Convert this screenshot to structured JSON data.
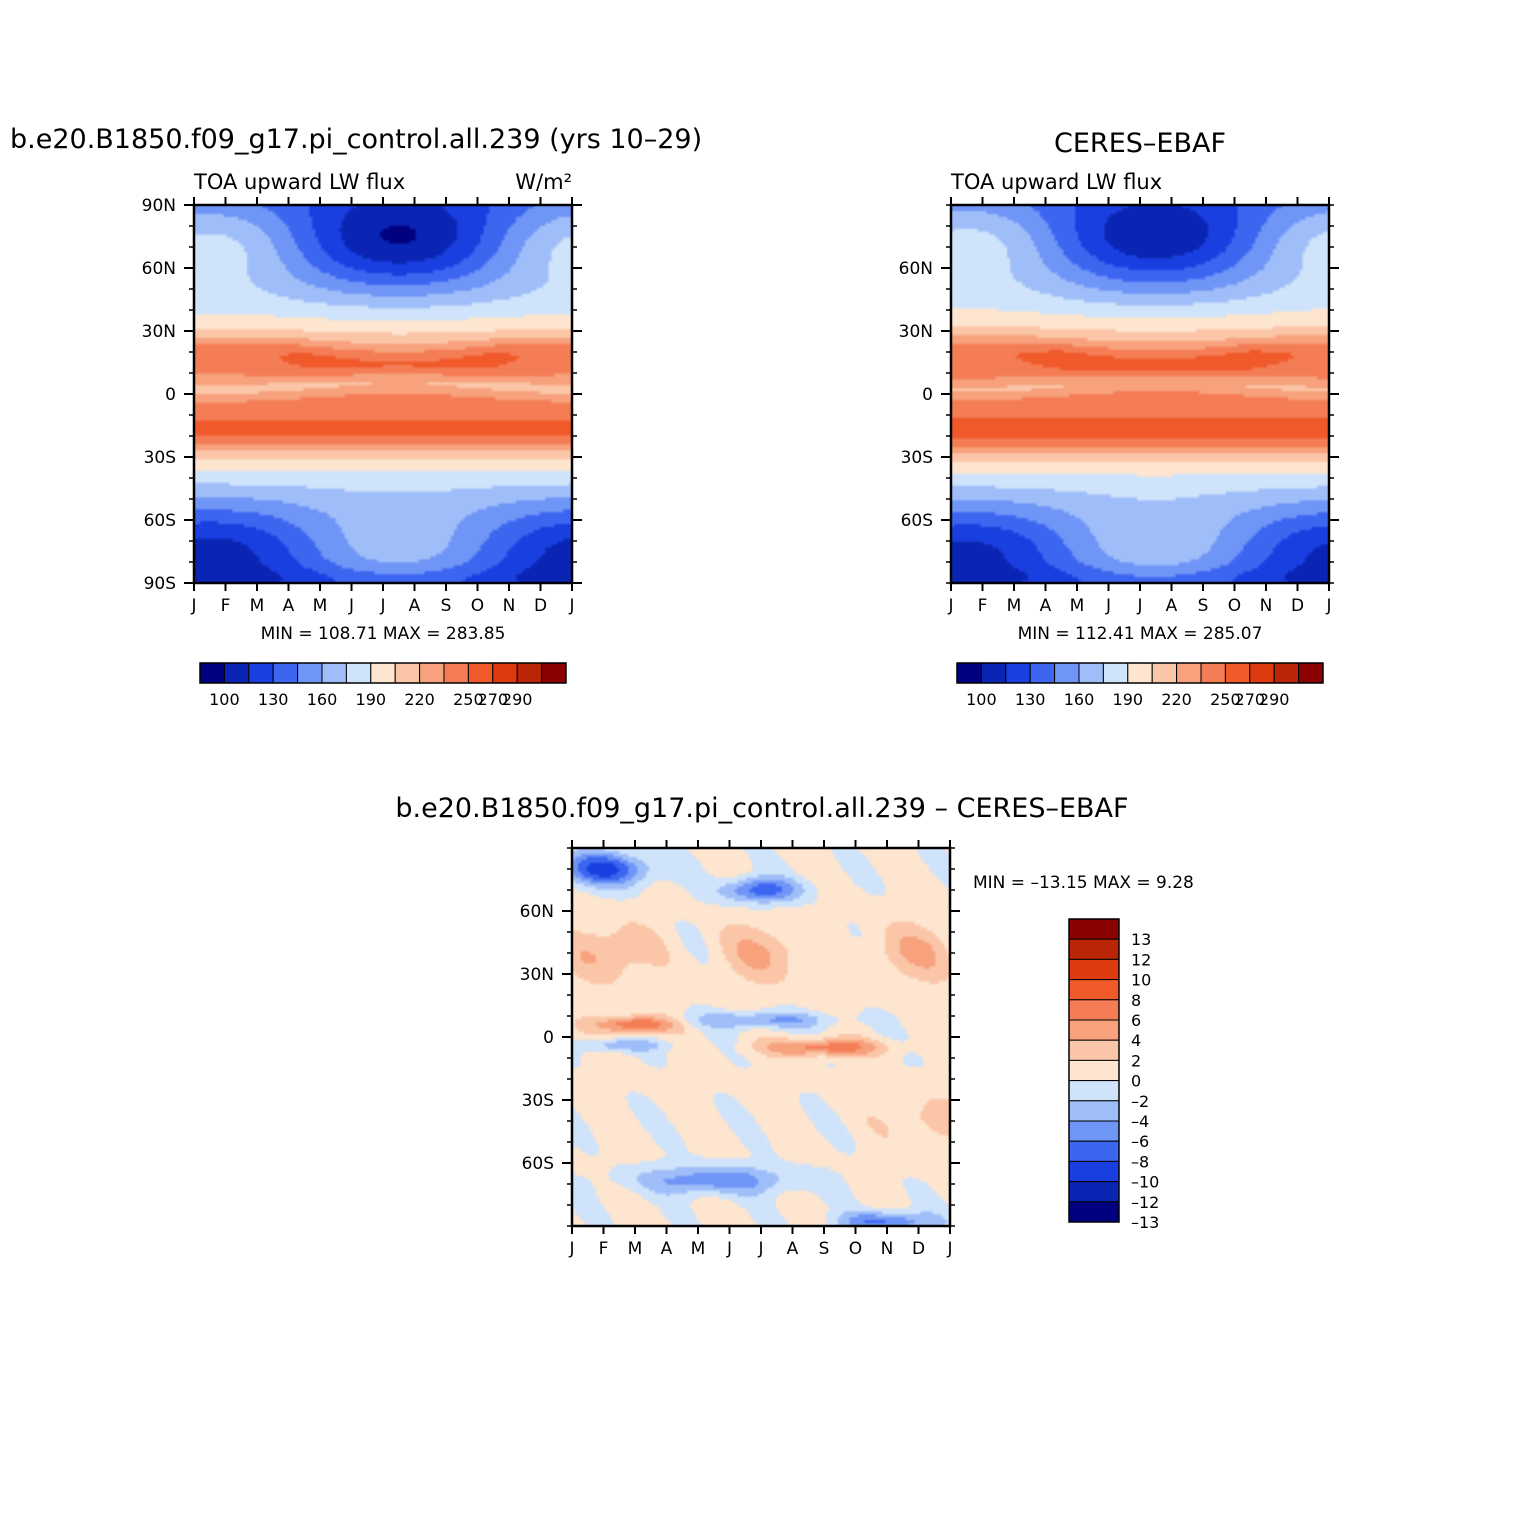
{
  "figure": {
    "model_title": "b.e20.B1850.f09_g17.pi_control.all.239 (yrs 10–29)",
    "obs_title": "CERES–EBAF",
    "diff_title": "b.e20.B1850.f09_g17.pi_control.all.239 – CERES–EBAF",
    "variable": "TOA upward LW flux",
    "units": "W/m²"
  },
  "stats": {
    "model": "MIN =  108.71  MAX =  283.85",
    "obs": "MIN =  112.41  MAX =  285.07",
    "diff": "MIN = –13.15  MAX =    9.28"
  },
  "x_ticks": [
    "J",
    "F",
    "M",
    "A",
    "M",
    "J",
    "J",
    "A",
    "S",
    "O",
    "N",
    "D",
    "J"
  ],
  "y_ticks_model": [
    "90N",
    "60N",
    "30N",
    "0",
    "30S",
    "60S",
    "90S"
  ],
  "y_ticks_obs": [
    "60N",
    "30N",
    "0",
    "30S",
    "60S"
  ],
  "y_ticks_diff": [
    "60N",
    "30N",
    "0",
    "30S",
    "60S"
  ],
  "colors": {
    "abs_bar": [
      "#000080",
      "#0a25b4",
      "#1a3fe0",
      "#3d66f0",
      "#6f95f7",
      "#9fbef9",
      "#cfe3fb",
      "#fde5cf",
      "#fbc6a8",
      "#f7a17d",
      "#f47d55",
      "#f05a2b",
      "#de3a10",
      "#b92505",
      "#8b0000"
    ],
    "diff_bar": [
      "#000080",
      "#0a25b4",
      "#1a3fe0",
      "#3d66f0",
      "#6f95f7",
      "#9fbef9",
      "#cfe3fb",
      "#fde5cf",
      "#fbc6a8",
      "#f7a17d",
      "#f47d55",
      "#f05a2b",
      "#de3a10",
      "#b92505",
      "#8b0000"
    ]
  },
  "chart_data": [
    {
      "type": "heatmap",
      "title": "b.e20.B1850.f09_g17.pi_control.all.239 (yrs 10–29)",
      "subtitle": "TOA upward LW flux",
      "units": "W/m²",
      "x": [
        "J",
        "F",
        "M",
        "A",
        "M",
        "J",
        "J",
        "A",
        "S",
        "O",
        "N",
        "D",
        "J"
      ],
      "y": [
        "90N",
        "60N",
        "30N",
        "0",
        "30S",
        "60S",
        "90S"
      ],
      "xlim": [
        0,
        12
      ],
      "ylim": [
        -90,
        90
      ],
      "min": 108.71,
      "max": 283.85,
      "colorbar_labels": [
        "100",
        "130",
        "160",
        "190",
        "220",
        "250",
        "270",
        "290"
      ]
    },
    {
      "type": "heatmap",
      "title": "CERES–EBAF",
      "subtitle": "TOA upward LW flux",
      "x": [
        "J",
        "F",
        "M",
        "A",
        "M",
        "J",
        "J",
        "A",
        "S",
        "O",
        "N",
        "D",
        "J"
      ],
      "y": [
        "60N",
        "30N",
        "0",
        "30S",
        "60S"
      ],
      "xlim": [
        0,
        12
      ],
      "ylim": [
        -90,
        90
      ],
      "min": 112.41,
      "max": 285.07,
      "colorbar_labels": [
        "100",
        "130",
        "160",
        "190",
        "220",
        "250",
        "270",
        "290"
      ]
    },
    {
      "type": "heatmap",
      "title": "b.e20.B1850.f09_g17.pi_control.all.239 – CERES–EBAF",
      "x": [
        "J",
        "F",
        "M",
        "A",
        "M",
        "J",
        "J",
        "A",
        "S",
        "O",
        "N",
        "D",
        "J"
      ],
      "y": [
        "60N",
        "30N",
        "0",
        "30S",
        "60S"
      ],
      "xlim": [
        0,
        12
      ],
      "ylim": [
        -90,
        90
      ],
      "min": -13.15,
      "max": 9.28,
      "colorbar_labels": [
        "13",
        "12",
        "10",
        "8",
        "6",
        "4",
        "2",
        "0",
        "–2",
        "–4",
        "–6",
        "–8",
        "–10",
        "–12",
        "–13"
      ]
    }
  ]
}
